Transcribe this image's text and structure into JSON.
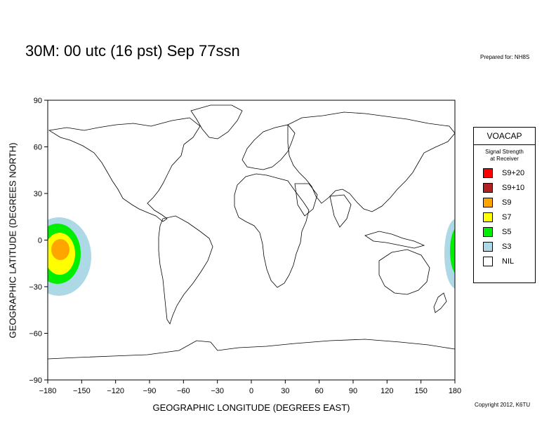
{
  "title": "30M:  00 utc (16 pst) Sep 77ssn",
  "prepared": "Prepared for: NH8S",
  "copyright": "Copyright 2012, K6TU",
  "axes": {
    "xlabel": "GEOGRAPHIC LONGITUDE (DEGREES EAST)",
    "ylabel": "GEOGRAPHIC LATITUDE (DEGREES NORTH)",
    "xticks": [
      "−180",
      "−150",
      "−120",
      "−90",
      "−60",
      "−30",
      "0",
      "30",
      "60",
      "90",
      "120",
      "150",
      "180"
    ],
    "yticks": [
      "90",
      "60",
      "30",
      "0",
      "−30",
      "−60",
      "−90"
    ],
    "xlim": [
      -180,
      180
    ],
    "ylim": [
      -90,
      90
    ]
  },
  "legend": {
    "title": "VOACAP",
    "subtitle_line1": "Signal Strength",
    "subtitle_line2": "at Receiver",
    "items": [
      {
        "label": "S9+20",
        "color": "#ff0000"
      },
      {
        "label": "S9+10",
        "color": "#b22222"
      },
      {
        "label": "S9",
        "color": "#ffa500"
      },
      {
        "label": "S7",
        "color": "#ffff00"
      },
      {
        "label": "S5",
        "color": "#00ee00"
      },
      {
        "label": "S3",
        "color": "#add8e6"
      },
      {
        "label": "NIL",
        "color": "#ffffff"
      }
    ]
  }
}
